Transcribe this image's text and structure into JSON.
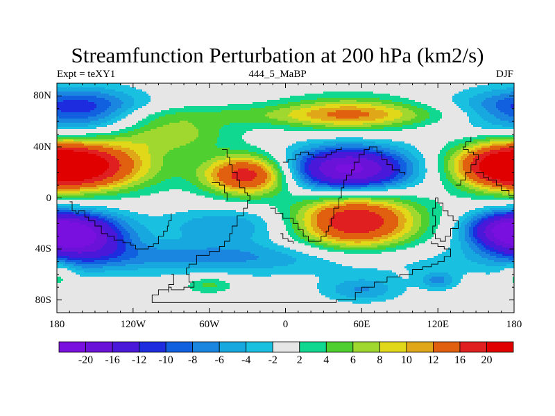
{
  "title": "Streamfunction Perturbation at 200 hPa (km2/s)",
  "subtitle_left": "Expt = teXY1",
  "subtitle_center": "444_5_MaBP",
  "subtitle_right": "DJF",
  "axes": {
    "lat_ticks": [
      "80N",
      "40N",
      "0",
      "40S",
      "80S"
    ],
    "lat_values": [
      80,
      40,
      0,
      -40,
      -80
    ],
    "lon_ticks": [
      "180",
      "120W",
      "60W",
      "0",
      "60E",
      "120E",
      "180"
    ],
    "lon_values": [
      -180,
      -120,
      -60,
      0,
      60,
      120,
      180
    ],
    "lon_range": [
      -180,
      180
    ],
    "lat_range": [
      -90,
      90
    ]
  },
  "colorbar": {
    "labels": [
      "-20",
      "-16",
      "-12",
      "-10",
      "-8",
      "-6",
      "-4",
      "-2",
      "2",
      "4",
      "6",
      "8",
      "10",
      "12",
      "16",
      "20"
    ],
    "colors": [
      "#7a10e0",
      "#6a12d8",
      "#4a18d8",
      "#1e2ce0",
      "#1060e0",
      "#1a86e0",
      "#18a8e0",
      "#1ac0e0",
      "#e6e6e6",
      "#10d890",
      "#50d030",
      "#a0d830",
      "#e0d818",
      "#e0a818",
      "#e06010",
      "#e02020",
      "#e00000"
    ]
  },
  "fields": [
    {
      "lon": -160,
      "lat": 25,
      "sx": 40,
      "sy": 14,
      "amp": 18
    },
    {
      "lon": -30,
      "lat": 18,
      "sx": 24,
      "sy": 11,
      "amp": 19
    },
    {
      "lon": 55,
      "lat": -18,
      "sx": 34,
      "sy": 16,
      "amp": 20
    },
    {
      "lon": 175,
      "lat": 25,
      "sx": 28,
      "sy": 12,
      "amp": 16
    },
    {
      "lon": 50,
      "lat": 66,
      "sx": 38,
      "sy": 10,
      "amp": 9
    },
    {
      "lon": -90,
      "lat": 50,
      "sx": 32,
      "sy": 10,
      "amp": 7
    },
    {
      "lon": -60,
      "lat": -68,
      "sx": 14,
      "sy": 5,
      "amp": 5
    },
    {
      "lon": -178,
      "lat": -60,
      "sx": 8,
      "sy": 8,
      "amp": 4
    },
    {
      "lon": 30,
      "lat": 65,
      "sx": 160,
      "sy": 6,
      "amp": 4
    },
    {
      "lon": 50,
      "lat": 22,
      "sx": 35,
      "sy": 13,
      "amp": -22
    },
    {
      "lon": -160,
      "lat": -30,
      "sx": 26,
      "sy": 13,
      "amp": -18
    },
    {
      "lon": 172,
      "lat": -25,
      "sx": 22,
      "sy": 10,
      "amp": -15
    },
    {
      "lon": 175,
      "lat": 68,
      "sx": 35,
      "sy": 12,
      "amp": -8
    },
    {
      "lon": -150,
      "lat": 70,
      "sx": 30,
      "sy": 12,
      "amp": -7
    },
    {
      "lon": -45,
      "lat": -22,
      "sx": 38,
      "sy": 10,
      "amp": -6
    },
    {
      "lon": 60,
      "lat": -72,
      "sx": 22,
      "sy": 7,
      "amp": -6
    },
    {
      "lon": 120,
      "lat": -65,
      "sx": 10,
      "sy": 5,
      "amp": -6
    },
    {
      "lon": -70,
      "lat": -45,
      "sx": 80,
      "sy": 8,
      "amp": -4
    },
    {
      "lon": 0,
      "lat": -50,
      "sx": 200,
      "sy": 10,
      "amp": -3
    }
  ],
  "coastlines": [
    [
      [
        -170,
        -3
      ],
      [
        -168,
        -10
      ],
      [
        -165,
        -12
      ],
      [
        -163,
        -10
      ],
      [
        -158,
        -15
      ],
      [
        -155,
        -18
      ],
      [
        -150,
        -22
      ],
      [
        -145,
        -28
      ],
      [
        -140,
        -30
      ],
      [
        -135,
        -33
      ],
      [
        -128,
        -35
      ],
      [
        -122,
        -37
      ],
      [
        -118,
        -40
      ],
      [
        -112,
        -40
      ],
      [
        -108,
        -38
      ],
      [
        -104,
        -36
      ],
      [
        -100,
        -30
      ],
      [
        -96,
        -26
      ],
      [
        -93,
        -22
      ],
      [
        -92,
        -18
      ],
      [
        -90,
        -12
      ]
    ],
    [
      [
        -90,
        -60
      ],
      [
        -88,
        -68
      ],
      [
        -92,
        -72
      ],
      [
        -100,
        -76
      ],
      [
        -105,
        -78
      ],
      [
        -105,
        -82
      ],
      [
        -90,
        -82
      ],
      [
        -70,
        -82
      ],
      [
        -50,
        -82
      ],
      [
        -20,
        -82
      ],
      [
        0,
        -82
      ],
      [
        20,
        -82
      ],
      [
        40,
        -80
      ],
      [
        55,
        -74
      ],
      [
        60,
        -70
      ],
      [
        70,
        -66
      ],
      [
        80,
        -62
      ],
      [
        90,
        -60
      ],
      [
        100,
        -56
      ],
      [
        108,
        -54
      ],
      [
        115,
        -52
      ],
      [
        120,
        -50
      ],
      [
        125,
        -46
      ],
      [
        130,
        -40
      ],
      [
        125,
        -38
      ],
      [
        120,
        -36
      ],
      [
        115,
        -34
      ]
    ],
    [
      [
        -50,
        38
      ],
      [
        -46,
        32
      ],
      [
        -44,
        26
      ],
      [
        -42,
        20
      ],
      [
        -38,
        14
      ],
      [
        -36,
        8
      ],
      [
        -32,
        4
      ],
      [
        -30,
        2
      ],
      [
        -28,
        -2
      ],
      [
        -30,
        -8
      ],
      [
        -33,
        -14
      ],
      [
        -38,
        -22
      ],
      [
        -42,
        -28
      ],
      [
        -44,
        -34
      ],
      [
        -48,
        -38
      ],
      [
        -52,
        -42
      ],
      [
        -60,
        -45
      ],
      [
        -70,
        -52
      ],
      [
        -76,
        -55
      ],
      [
        -78,
        -60
      ],
      [
        -76,
        -66
      ],
      [
        -72,
        -70
      ],
      [
        -80,
        -72
      ],
      [
        -90,
        -70
      ],
      [
        -92,
        -74
      ]
    ],
    [
      [
        -12,
        -8
      ],
      [
        -8,
        -12
      ],
      [
        -2,
        -16
      ],
      [
        6,
        -20
      ],
      [
        10,
        -25
      ],
      [
        14,
        -30
      ],
      [
        18,
        -34
      ],
      [
        24,
        -34
      ],
      [
        28,
        -30
      ],
      [
        32,
        -26
      ],
      [
        34,
        -22
      ],
      [
        36,
        -16
      ],
      [
        38,
        -8
      ],
      [
        42,
        0
      ],
      [
        44,
        8
      ],
      [
        46,
        14
      ],
      [
        48,
        18
      ],
      [
        52,
        22
      ],
      [
        54,
        28
      ],
      [
        58,
        34
      ],
      [
        62,
        38
      ],
      [
        66,
        40
      ],
      [
        72,
        36
      ],
      [
        76,
        30
      ],
      [
        80,
        26
      ],
      [
        84,
        22
      ],
      [
        90,
        20
      ],
      [
        94,
        18
      ]
    ],
    [
      [
        -4,
        -28
      ],
      [
        -2,
        -32
      ],
      [
        2,
        -34
      ],
      [
        6,
        -36
      ]
    ],
    [
      [
        -2,
        28
      ],
      [
        2,
        30
      ],
      [
        8,
        34
      ],
      [
        12,
        36
      ],
      [
        18,
        34
      ],
      [
        22,
        32
      ],
      [
        28,
        32
      ],
      [
        32,
        34
      ],
      [
        36,
        36
      ],
      [
        40,
        38
      ],
      [
        44,
        40
      ]
    ],
    [
      [
        118,
        0
      ],
      [
        120,
        -4
      ],
      [
        124,
        -10
      ],
      [
        128,
        -14
      ],
      [
        132,
        -18
      ],
      [
        136,
        -24
      ],
      [
        130,
        -30
      ],
      [
        126,
        -34
      ],
      [
        122,
        -32
      ],
      [
        118,
        -28
      ],
      [
        116,
        -22
      ],
      [
        118,
        -14
      ],
      [
        116,
        -8
      ],
      [
        118,
        0
      ]
    ],
    [
      [
        134,
        10
      ],
      [
        138,
        14
      ],
      [
        142,
        20
      ],
      [
        146,
        26
      ],
      [
        150,
        30
      ],
      [
        152,
        34
      ],
      [
        148,
        36
      ],
      [
        144,
        38
      ],
      [
        140,
        40
      ],
      [
        142,
        44
      ],
      [
        146,
        48
      ]
    ],
    [
      [
        150,
        20
      ],
      [
        156,
        16
      ],
      [
        160,
        14
      ],
      [
        166,
        10
      ],
      [
        170,
        6
      ],
      [
        176,
        2
      ],
      [
        180,
        -2
      ]
    ],
    [
      [
        -58,
        12
      ],
      [
        -52,
        10
      ],
      [
        -48,
        4
      ],
      [
        -46,
        -2
      ]
    ]
  ]
}
